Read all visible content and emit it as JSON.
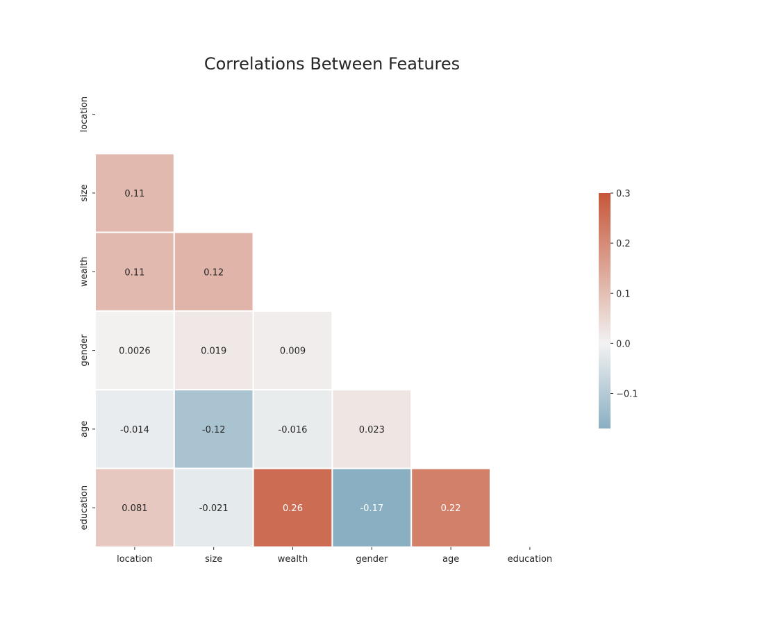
{
  "chart_data": {
    "type": "heatmap",
    "title": "Correlations Between Features",
    "xlabel": "",
    "ylabel": "",
    "variables": [
      "location",
      "size",
      "wealth",
      "gender",
      "age",
      "education"
    ],
    "mask": "upper-triangle-including-diagonal",
    "cells": [
      {
        "row": "size",
        "col": "location",
        "value": 0.11,
        "label": "0.11"
      },
      {
        "row": "wealth",
        "col": "location",
        "value": 0.11,
        "label": "0.11"
      },
      {
        "row": "wealth",
        "col": "size",
        "value": 0.12,
        "label": "0.12"
      },
      {
        "row": "gender",
        "col": "location",
        "value": 0.0026,
        "label": "0.0026"
      },
      {
        "row": "gender",
        "col": "size",
        "value": 0.019,
        "label": "0.019"
      },
      {
        "row": "gender",
        "col": "wealth",
        "value": 0.009,
        "label": "0.009"
      },
      {
        "row": "age",
        "col": "location",
        "value": -0.014,
        "label": "-0.014"
      },
      {
        "row": "age",
        "col": "size",
        "value": -0.12,
        "label": "-0.12"
      },
      {
        "row": "age",
        "col": "wealth",
        "value": -0.016,
        "label": "-0.016"
      },
      {
        "row": "age",
        "col": "gender",
        "value": 0.023,
        "label": "0.023"
      },
      {
        "row": "education",
        "col": "location",
        "value": 0.081,
        "label": "0.081"
      },
      {
        "row": "education",
        "col": "size",
        "value": -0.021,
        "label": "-0.021"
      },
      {
        "row": "education",
        "col": "wealth",
        "value": 0.26,
        "label": "0.26"
      },
      {
        "row": "education",
        "col": "gender",
        "value": -0.17,
        "label": "-0.17"
      },
      {
        "row": "education",
        "col": "age",
        "value": 0.22,
        "label": "0.22"
      }
    ],
    "colorbar": {
      "vmin": -0.17,
      "vmax": 0.3,
      "ticks": [
        0.3,
        0.2,
        0.1,
        0.0,
        -0.1
      ],
      "tick_labels": [
        "0.3",
        "0.2",
        "0.1",
        "0.0",
        "−0.1"
      ],
      "colors": {
        "negative": "#8aafc2",
        "center": "#f2f2f2",
        "positive": "#c65739"
      },
      "placement": "right"
    },
    "grid": false,
    "legend": "colorbar-right"
  }
}
